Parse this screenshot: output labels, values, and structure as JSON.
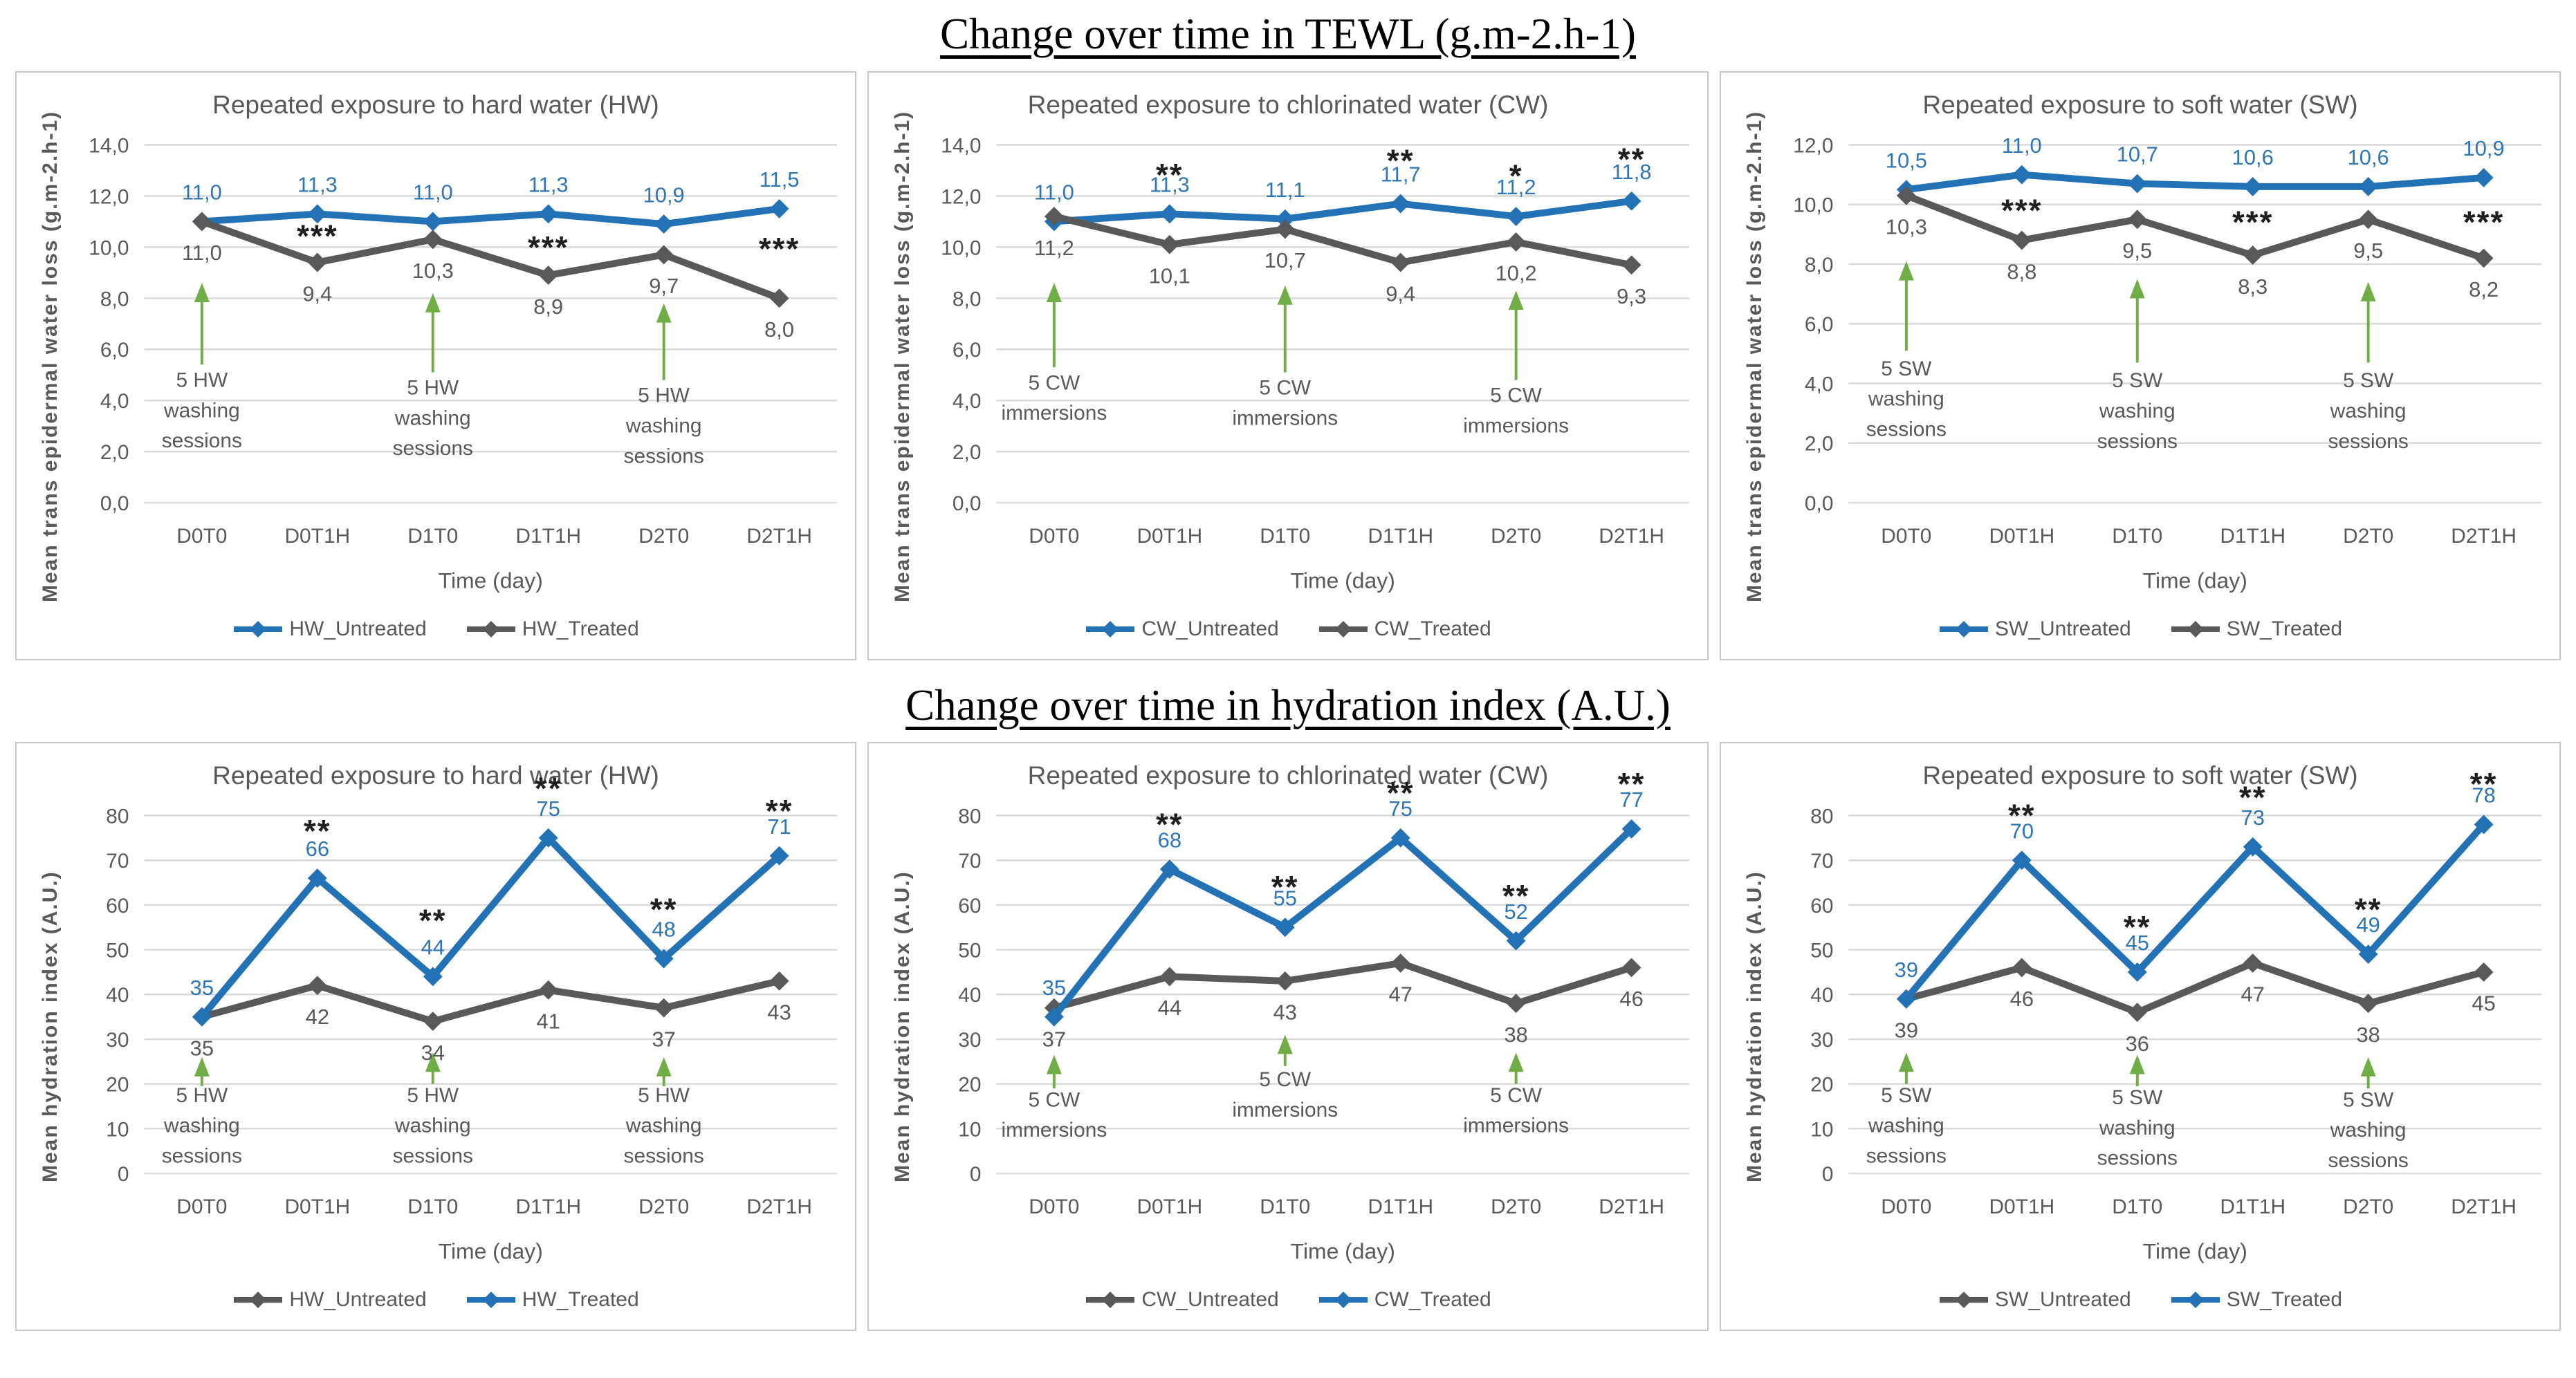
{
  "page": {
    "section1_title": "Change over time in TEWL (g.m-2.h-1)",
    "section2_title": "Change over time in hydration index (A.U.)"
  },
  "colors": {
    "blue": "#2272B5",
    "label_blue": "#2E75B6",
    "gray_line": "#58595B",
    "text_gray": "#595959",
    "grid": "#D9D9D9",
    "green": "#70AD47",
    "star": "#1F1F1F",
    "panel_border": "#C8C8C8"
  },
  "chart_data": [
    {
      "id": "tewl-hw",
      "type": "line",
      "title": "Repeated exposure to hard water (HW)",
      "ylabel": "Mean trans epidermal water loss (g.m-2.h-1)",
      "xlabel": "Time (day)",
      "categories": [
        "D0T0",
        "D0T1H",
        "D1T0",
        "D1T1H",
        "D2T0",
        "D2T1H"
      ],
      "ymax": 14,
      "yticks": [
        "0,0",
        "2,0",
        "4,0",
        "6,0",
        "8,0",
        "10,0",
        "12,0",
        "14,0"
      ],
      "legend_position": "bottom",
      "grid": "horizontal",
      "series": [
        {
          "name": "HW_Untreated",
          "color": "blue",
          "label_pos": "above",
          "values": [
            11.0,
            11.3,
            11.0,
            11.3,
            10.9,
            11.5
          ],
          "labels": [
            "11,0",
            "11,3",
            "11,0",
            "11,3",
            "10,9",
            "11,5"
          ]
        },
        {
          "name": "HW_Treated",
          "color": "gray",
          "label_pos": "below",
          "values": [
            11.0,
            9.4,
            10.3,
            8.9,
            9.7,
            8.0
          ],
          "labels": [
            "11,0",
            "9,4",
            "10,3",
            "8,9",
            "9,7",
            "8,0"
          ]
        }
      ],
      "significance": [
        {
          "index": 1,
          "text": "***",
          "y": 10.6
        },
        {
          "index": 3,
          "text": "***",
          "y": 10.15
        },
        {
          "index": 5,
          "text": "***",
          "y": 10.1
        }
      ],
      "annotations": [
        {
          "index": 0,
          "lines": [
            "5 HW",
            "washing",
            "sessions"
          ],
          "top": 4.8,
          "arrow_tip": 8.6,
          "arrow_tail": 5.4
        },
        {
          "index": 2,
          "lines": [
            "5 HW",
            "washing",
            "sessions"
          ],
          "top": 4.5,
          "arrow_tip": 8.2,
          "arrow_tail": 5.1
        },
        {
          "index": 4,
          "lines": [
            "5 HW",
            "washing",
            "sessions"
          ],
          "top": 4.2,
          "arrow_tip": 7.8,
          "arrow_tail": 4.8
        }
      ]
    },
    {
      "id": "tewl-cw",
      "type": "line",
      "title": "Repeated exposure to chlorinated water (CW)",
      "ylabel": "Mean trans epidermal water loss (g.m-2.h-1)",
      "xlabel": "Time (day)",
      "categories": [
        "D0T0",
        "D0T1H",
        "D1T0",
        "D1T1H",
        "D2T0",
        "D2T1H"
      ],
      "ymax": 14,
      "yticks": [
        "0,0",
        "2,0",
        "4,0",
        "6,0",
        "8,0",
        "10,0",
        "12,0",
        "14,0"
      ],
      "legend_position": "bottom",
      "grid": "horizontal",
      "series": [
        {
          "name": "CW_Untreated",
          "color": "blue",
          "label_pos": "above",
          "values": [
            11.0,
            11.3,
            11.1,
            11.7,
            11.2,
            11.8
          ],
          "labels": [
            "11,0",
            "11,3",
            "11,1",
            "11,7",
            "11,2",
            "11,8"
          ]
        },
        {
          "name": "CW_Treated",
          "color": "gray",
          "label_pos": "below",
          "values": [
            11.2,
            10.1,
            10.7,
            9.4,
            10.2,
            9.3
          ],
          "labels": [
            "11,2",
            "10,1",
            "10,7",
            "9,4",
            "10,2",
            "9,3"
          ]
        }
      ],
      "significance": [
        {
          "index": 1,
          "text": "**",
          "y": 13.0
        },
        {
          "index": 3,
          "text": "**",
          "y": 13.55
        },
        {
          "index": 4,
          "text": "*",
          "y": 12.95
        },
        {
          "index": 5,
          "text": "**",
          "y": 13.6
        }
      ],
      "annotations": [
        {
          "index": 0,
          "lines": [
            "5 CW",
            "immersions"
          ],
          "top": 4.7,
          "arrow_tip": 8.6,
          "arrow_tail": 5.3
        },
        {
          "index": 2,
          "lines": [
            "5 CW",
            "immersions"
          ],
          "top": 4.5,
          "arrow_tip": 8.5,
          "arrow_tail": 5.1
        },
        {
          "index": 4,
          "lines": [
            "5 CW",
            "immersions"
          ],
          "top": 4.2,
          "arrow_tip": 8.3,
          "arrow_tail": 4.8
        }
      ]
    },
    {
      "id": "tewl-sw",
      "type": "line",
      "title": "Repeated exposure to soft water (SW)",
      "ylabel": "Mean trans epidermal water loss (g.m-2.h-1)",
      "xlabel": "Time (day)",
      "categories": [
        "D0T0",
        "D0T1H",
        "D1T0",
        "D1T1H",
        "D2T0",
        "D2T1H"
      ],
      "ymax": 12,
      "yticks": [
        "0,0",
        "2,0",
        "4,0",
        "6,0",
        "8,0",
        "10,0",
        "12,0"
      ],
      "legend_position": "bottom",
      "grid": "horizontal",
      "series": [
        {
          "name": "SW_Untreated",
          "color": "blue",
          "label_pos": "above",
          "values": [
            10.5,
            11.0,
            10.7,
            10.6,
            10.6,
            10.9
          ],
          "labels": [
            "10,5",
            "11,0",
            "10,7",
            "10,6",
            "10,6",
            "10,9"
          ]
        },
        {
          "name": "SW_Treated",
          "color": "gray",
          "label_pos": "below",
          "values": [
            10.3,
            8.8,
            9.5,
            8.3,
            9.5,
            8.2
          ],
          "labels": [
            "10,3",
            "8,8",
            "9,5",
            "8,3",
            "9,5",
            "8,2"
          ]
        }
      ],
      "significance": [
        {
          "index": 1,
          "text": "***",
          "y": 9.95
        },
        {
          "index": 3,
          "text": "***",
          "y": 9.55
        },
        {
          "index": 5,
          "text": "***",
          "y": 9.55
        }
      ],
      "annotations": [
        {
          "index": 0,
          "lines": [
            "5 SW",
            "washing",
            "sessions"
          ],
          "top": 4.5,
          "arrow_tip": 8.1,
          "arrow_tail": 5.1
        },
        {
          "index": 2,
          "lines": [
            "5 SW",
            "washing",
            "sessions"
          ],
          "top": 4.1,
          "arrow_tip": 7.5,
          "arrow_tail": 4.7
        },
        {
          "index": 4,
          "lines": [
            "5 SW",
            "washing",
            "sessions"
          ],
          "top": 4.1,
          "arrow_tip": 7.4,
          "arrow_tail": 4.7
        }
      ]
    },
    {
      "id": "hydration-hw",
      "type": "line",
      "title": "Repeated exposure to hard water (HW)",
      "ylabel": "Mean hydration index (A.U.)",
      "xlabel": "Time (day)",
      "categories": [
        "D0T0",
        "D0T1H",
        "D1T0",
        "D1T1H",
        "D2T0",
        "D2T1H"
      ],
      "ymax": 80,
      "yticks": [
        "0",
        "10",
        "20",
        "30",
        "40",
        "50",
        "60",
        "70",
        "80"
      ],
      "legend_position": "bottom",
      "grid": "horizontal",
      "series": [
        {
          "name": "HW_Untreated",
          "color": "gray",
          "label_pos": "below",
          "values": [
            35,
            42,
            34,
            41,
            37,
            43
          ],
          "labels": [
            "35",
            "42",
            "34",
            "41",
            "37",
            "43"
          ]
        },
        {
          "name": "HW_Treated",
          "color": "blue",
          "label_pos": "above",
          "values": [
            35,
            66,
            44,
            75,
            48,
            71
          ],
          "labels": [
            "35",
            "66",
            "44",
            "75",
            "48",
            "71"
          ]
        }
      ],
      "significance": [
        {
          "index": 1,
          "text": "**",
          "y": 77.5
        },
        {
          "index": 2,
          "text": "**",
          "y": 57.5
        },
        {
          "index": 3,
          "text": "**",
          "y": 87
        },
        {
          "index": 4,
          "text": "**",
          "y": 60
        },
        {
          "index": 5,
          "text": "**",
          "y": 82
        }
      ],
      "annotations": [
        {
          "index": 0,
          "lines": [
            "5 HW",
            "washing",
            "sessions"
          ],
          "top": 17.5,
          "arrow_tip": 26,
          "arrow_tail": 19.5
        },
        {
          "index": 2,
          "lines": [
            "5 HW",
            "washing",
            "sessions"
          ],
          "top": 17.5,
          "arrow_tip": 27,
          "arrow_tail": 20
        },
        {
          "index": 4,
          "lines": [
            "5 HW",
            "washing",
            "sessions"
          ],
          "top": 17.5,
          "arrow_tip": 26,
          "arrow_tail": 19.5
        }
      ]
    },
    {
      "id": "hydration-cw",
      "type": "line",
      "title": "Repeated exposure to chlorinated water (CW)",
      "ylabel": "Mean hydration index (A.U.)",
      "xlabel": "Time (day)",
      "categories": [
        "D0T0",
        "D0T1H",
        "D1T0",
        "D1T1H",
        "D2T0",
        "D2T1H"
      ],
      "ymax": 80,
      "yticks": [
        "0",
        "10",
        "20",
        "30",
        "40",
        "50",
        "60",
        "70",
        "80"
      ],
      "legend_position": "bottom",
      "grid": "horizontal",
      "series": [
        {
          "name": "CW_Untreated",
          "color": "gray",
          "label_pos": "below",
          "values": [
            37,
            44,
            43,
            47,
            38,
            46
          ],
          "labels": [
            "37",
            "44",
            "43",
            "47",
            "38",
            "46"
          ]
        },
        {
          "name": "CW_Treated",
          "color": "blue",
          "label_pos": "above",
          "values": [
            35,
            68,
            55,
            75,
            52,
            77
          ],
          "labels": [
            "35",
            "68",
            "55",
            "75",
            "52",
            "77"
          ]
        }
      ],
      "significance": [
        {
          "index": 1,
          "text": "**",
          "y": 79
        },
        {
          "index": 2,
          "text": "**",
          "y": 65
        },
        {
          "index": 3,
          "text": "**",
          "y": 86
        },
        {
          "index": 4,
          "text": "**",
          "y": 63
        },
        {
          "index": 5,
          "text": "**",
          "y": 88
        }
      ],
      "annotations": [
        {
          "index": 0,
          "lines": [
            "5 CW",
            "immersions"
          ],
          "top": 16.5,
          "arrow_tip": 26.5,
          "arrow_tail": 19
        },
        {
          "index": 2,
          "lines": [
            "5 CW",
            "immersions"
          ],
          "top": 21,
          "arrow_tip": 31,
          "arrow_tail": 24
        },
        {
          "index": 4,
          "lines": [
            "5 CW",
            "immersions"
          ],
          "top": 17.5,
          "arrow_tip": 27,
          "arrow_tail": 20
        }
      ]
    },
    {
      "id": "hydration-sw",
      "type": "line",
      "title": "Repeated exposure to soft water (SW)",
      "ylabel": "Mean hydration index (A.U.)",
      "xlabel": "Time (day)",
      "categories": [
        "D0T0",
        "D0T1H",
        "D1T0",
        "D1T1H",
        "D2T0",
        "D2T1H"
      ],
      "ymax": 80,
      "yticks": [
        "0",
        "10",
        "20",
        "30",
        "40",
        "50",
        "60",
        "70",
        "80"
      ],
      "legend_position": "bottom",
      "grid": "horizontal",
      "series": [
        {
          "name": "SW_Untreated",
          "color": "gray",
          "label_pos": "below",
          "values": [
            39,
            46,
            36,
            47,
            38,
            45
          ],
          "labels": [
            "39",
            "46",
            "36",
            "47",
            "38",
            "45"
          ]
        },
        {
          "name": "SW_Treated",
          "color": "blue",
          "label_pos": "above",
          "values": [
            39,
            70,
            45,
            73,
            49,
            78
          ],
          "labels": [
            "39",
            "70",
            "45",
            "73",
            "49",
            "78"
          ]
        }
      ],
      "significance": [
        {
          "index": 1,
          "text": "**",
          "y": 81
        },
        {
          "index": 2,
          "text": "**",
          "y": 56
        },
        {
          "index": 3,
          "text": "**",
          "y": 85
        },
        {
          "index": 4,
          "text": "**",
          "y": 60
        },
        {
          "index": 5,
          "text": "**",
          "y": 88
        }
      ],
      "annotations": [
        {
          "index": 0,
          "lines": [
            "5 SW",
            "washing",
            "sessions"
          ],
          "top": 17.5,
          "arrow_tip": 27,
          "arrow_tail": 20
        },
        {
          "index": 2,
          "lines": [
            "5 SW",
            "washing",
            "sessions"
          ],
          "top": 17,
          "arrow_tip": 26.5,
          "arrow_tail": 19.5
        },
        {
          "index": 4,
          "lines": [
            "5 SW",
            "washing",
            "sessions"
          ],
          "top": 16.5,
          "arrow_tip": 26,
          "arrow_tail": 19
        }
      ]
    }
  ]
}
